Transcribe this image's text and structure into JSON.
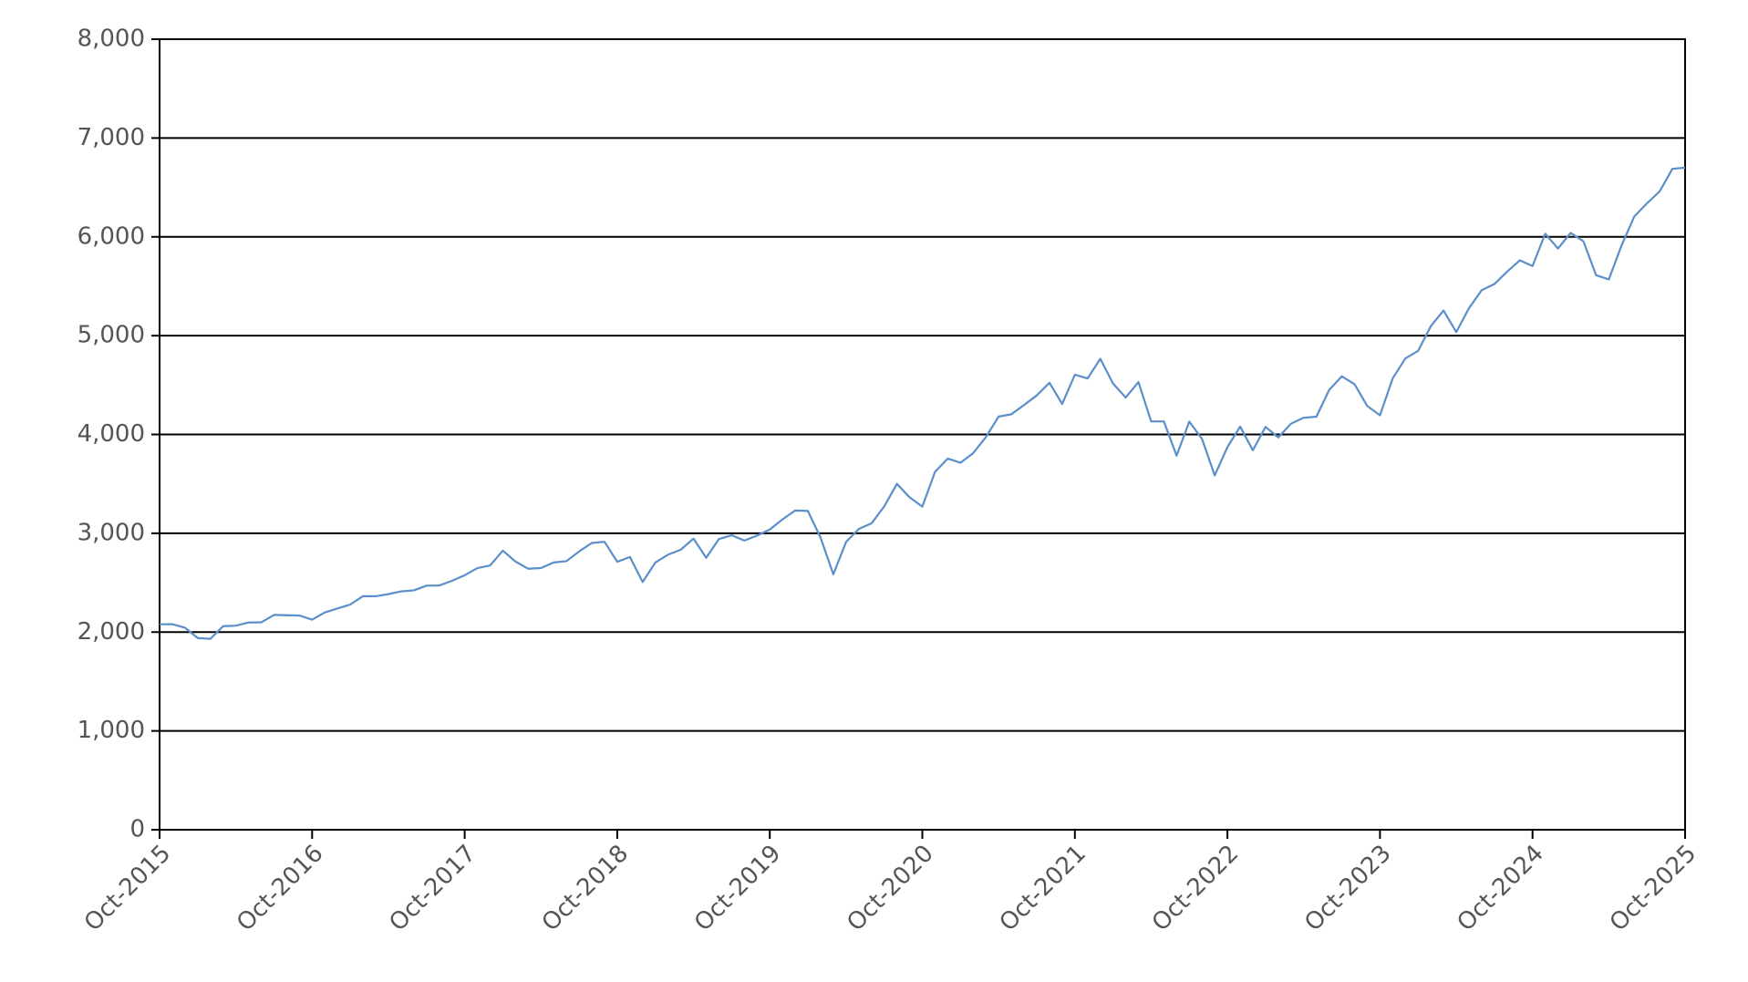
{
  "chart_data": {
    "type": "line",
    "x": [
      "2015-10",
      "2015-11",
      "2015-12",
      "2016-01",
      "2016-02",
      "2016-03",
      "2016-04",
      "2016-05",
      "2016-06",
      "2016-07",
      "2016-08",
      "2016-09",
      "2016-10",
      "2016-11",
      "2016-12",
      "2017-01",
      "2017-02",
      "2017-03",
      "2017-04",
      "2017-05",
      "2017-06",
      "2017-07",
      "2017-08",
      "2017-09",
      "2017-10",
      "2017-11",
      "2017-12",
      "2018-01",
      "2018-02",
      "2018-03",
      "2018-04",
      "2018-05",
      "2018-06",
      "2018-07",
      "2018-08",
      "2018-09",
      "2018-10",
      "2018-11",
      "2018-12",
      "2019-01",
      "2019-02",
      "2019-03",
      "2019-04",
      "2019-05",
      "2019-06",
      "2019-07",
      "2019-08",
      "2019-09",
      "2019-10",
      "2019-11",
      "2019-12",
      "2020-01",
      "2020-02",
      "2020-03",
      "2020-04",
      "2020-05",
      "2020-06",
      "2020-07",
      "2020-08",
      "2020-09",
      "2020-10",
      "2020-11",
      "2020-12",
      "2021-01",
      "2021-02",
      "2021-03",
      "2021-04",
      "2021-05",
      "2021-06",
      "2021-07",
      "2021-08",
      "2021-09",
      "2021-10",
      "2021-11",
      "2021-12",
      "2022-01",
      "2022-02",
      "2022-03",
      "2022-04",
      "2022-05",
      "2022-06",
      "2022-07",
      "2022-08",
      "2022-09",
      "2022-10",
      "2022-11",
      "2022-12",
      "2023-01",
      "2023-02",
      "2023-03",
      "2023-04",
      "2023-05",
      "2023-06",
      "2023-07",
      "2023-08",
      "2023-09",
      "2023-10",
      "2023-11",
      "2023-12",
      "2024-01",
      "2024-02",
      "2024-03",
      "2024-04",
      "2024-05",
      "2024-06",
      "2024-07",
      "2024-08",
      "2024-09",
      "2024-10",
      "2024-11",
      "2024-12",
      "2025-01",
      "2025-02",
      "2025-03",
      "2025-04",
      "2025-05",
      "2025-06",
      "2025-07",
      "2025-08",
      "2025-09",
      "2025-10"
    ],
    "values": [
      2079,
      2080,
      2044,
      1940,
      1932,
      2060,
      2065,
      2097,
      2099,
      2174,
      2171,
      2168,
      2126,
      2199,
      2239,
      2279,
      2364,
      2363,
      2384,
      2412,
      2423,
      2470,
      2472,
      2519,
      2575,
      2648,
      2674,
      2824,
      2714,
      2641,
      2648,
      2705,
      2718,
      2816,
      2902,
      2914,
      2712,
      2760,
      2507,
      2704,
      2784,
      2834,
      2946,
      2752,
      2942,
      2980,
      2926,
      2977,
      3038,
      3141,
      3231,
      3226,
      2954,
      2585,
      2912,
      3044,
      3100,
      3271,
      3500,
      3363,
      3270,
      3622,
      3756,
      3714,
      3811,
      3973,
      4181,
      4204,
      4298,
      4395,
      4523,
      4308,
      4605,
      4567,
      4766,
      4516,
      4374,
      4530,
      4132,
      4132,
      3785,
      4130,
      3955,
      3586,
      3872,
      4080,
      3840,
      4077,
      3970,
      4109,
      4169,
      4180,
      4450,
      4589,
      4508,
      4288,
      4194,
      4568,
      4770,
      4846,
      5096,
      5254,
      5036,
      5278,
      5460,
      5522,
      5648,
      5762,
      5705,
      6032,
      5882,
      6040,
      5955,
      5612,
      5569,
      5912,
      6205,
      6339,
      6460,
      6688,
      6700
    ],
    "color": "#5b8fc9",
    "xlim": [
      "2015-10",
      "2025-10"
    ],
    "xticks": [
      {
        "value": "2015-10",
        "label": "Oct-2015"
      },
      {
        "value": "2016-10",
        "label": "Oct-2016"
      },
      {
        "value": "2017-10",
        "label": "Oct-2017"
      },
      {
        "value": "2018-10",
        "label": "Oct-2018"
      },
      {
        "value": "2019-10",
        "label": "Oct-2019"
      },
      {
        "value": "2020-10",
        "label": "Oct-2020"
      },
      {
        "value": "2021-10",
        "label": "Oct-2021"
      },
      {
        "value": "2022-10",
        "label": "Oct-2022"
      },
      {
        "value": "2023-10",
        "label": "Oct-2023"
      },
      {
        "value": "2024-10",
        "label": "Oct-2024"
      },
      {
        "value": "2025-10",
        "label": "Oct-2025"
      }
    ],
    "ylim": [
      0,
      8000
    ],
    "yticks": [
      0,
      {
        "value": 1000,
        "label": "1,000"
      },
      {
        "value": 2000,
        "label": "2,000"
      },
      {
        "value": 3000,
        "label": "3,000"
      },
      {
        "value": 4000,
        "label": "4,000"
      },
      {
        "value": 5000,
        "label": "5,000"
      },
      {
        "value": 6000,
        "label": "6,000"
      },
      {
        "value": 7000,
        "label": "7,000"
      },
      {
        "value": 8000,
        "label": "8,000"
      }
    ],
    "grid": true
  }
}
